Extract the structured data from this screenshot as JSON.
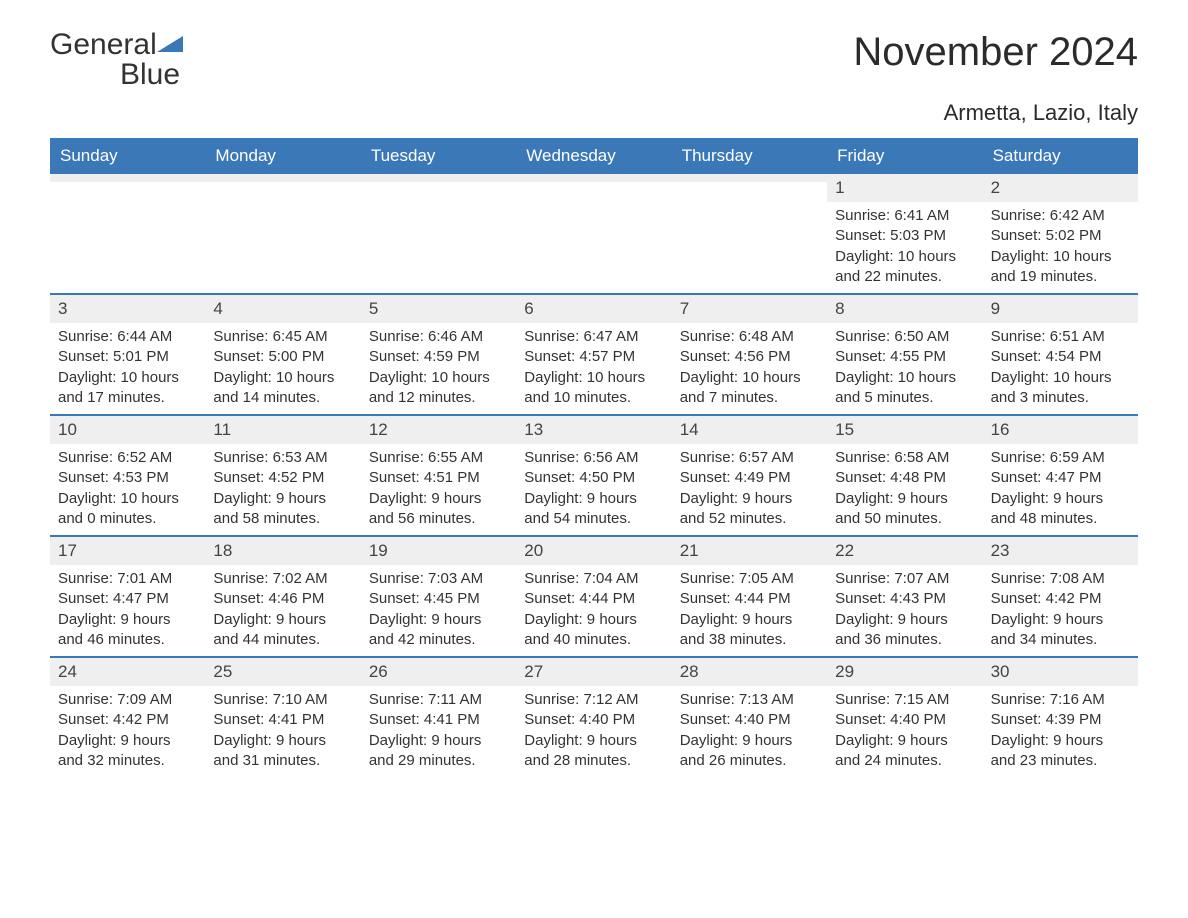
{
  "brand": {
    "name_part1": "General",
    "name_part2": "Blue"
  },
  "title": "November 2024",
  "location": "Armetta, Lazio, Italy",
  "colors": {
    "header_bg": "#3b78b8",
    "header_text": "#ffffff",
    "daynum_bg": "#efefef",
    "week_border": "#3b78b8",
    "body_text": "#333333",
    "page_bg": "#ffffff"
  },
  "day_headers": [
    "Sunday",
    "Monday",
    "Tuesday",
    "Wednesday",
    "Thursday",
    "Friday",
    "Saturday"
  ],
  "weeks": [
    [
      null,
      null,
      null,
      null,
      null,
      {
        "n": "1",
        "sunrise": "6:41 AM",
        "sunset": "5:03 PM",
        "daylight": "10 hours and 22 minutes."
      },
      {
        "n": "2",
        "sunrise": "6:42 AM",
        "sunset": "5:02 PM",
        "daylight": "10 hours and 19 minutes."
      }
    ],
    [
      {
        "n": "3",
        "sunrise": "6:44 AM",
        "sunset": "5:01 PM",
        "daylight": "10 hours and 17 minutes."
      },
      {
        "n": "4",
        "sunrise": "6:45 AM",
        "sunset": "5:00 PM",
        "daylight": "10 hours and 14 minutes."
      },
      {
        "n": "5",
        "sunrise": "6:46 AM",
        "sunset": "4:59 PM",
        "daylight": "10 hours and 12 minutes."
      },
      {
        "n": "6",
        "sunrise": "6:47 AM",
        "sunset": "4:57 PM",
        "daylight": "10 hours and 10 minutes."
      },
      {
        "n": "7",
        "sunrise": "6:48 AM",
        "sunset": "4:56 PM",
        "daylight": "10 hours and 7 minutes."
      },
      {
        "n": "8",
        "sunrise": "6:50 AM",
        "sunset": "4:55 PM",
        "daylight": "10 hours and 5 minutes."
      },
      {
        "n": "9",
        "sunrise": "6:51 AM",
        "sunset": "4:54 PM",
        "daylight": "10 hours and 3 minutes."
      }
    ],
    [
      {
        "n": "10",
        "sunrise": "6:52 AM",
        "sunset": "4:53 PM",
        "daylight": "10 hours and 0 minutes."
      },
      {
        "n": "11",
        "sunrise": "6:53 AM",
        "sunset": "4:52 PM",
        "daylight": "9 hours and 58 minutes."
      },
      {
        "n": "12",
        "sunrise": "6:55 AM",
        "sunset": "4:51 PM",
        "daylight": "9 hours and 56 minutes."
      },
      {
        "n": "13",
        "sunrise": "6:56 AM",
        "sunset": "4:50 PM",
        "daylight": "9 hours and 54 minutes."
      },
      {
        "n": "14",
        "sunrise": "6:57 AM",
        "sunset": "4:49 PM",
        "daylight": "9 hours and 52 minutes."
      },
      {
        "n": "15",
        "sunrise": "6:58 AM",
        "sunset": "4:48 PM",
        "daylight": "9 hours and 50 minutes."
      },
      {
        "n": "16",
        "sunrise": "6:59 AM",
        "sunset": "4:47 PM",
        "daylight": "9 hours and 48 minutes."
      }
    ],
    [
      {
        "n": "17",
        "sunrise": "7:01 AM",
        "sunset": "4:47 PM",
        "daylight": "9 hours and 46 minutes."
      },
      {
        "n": "18",
        "sunrise": "7:02 AM",
        "sunset": "4:46 PM",
        "daylight": "9 hours and 44 minutes."
      },
      {
        "n": "19",
        "sunrise": "7:03 AM",
        "sunset": "4:45 PM",
        "daylight": "9 hours and 42 minutes."
      },
      {
        "n": "20",
        "sunrise": "7:04 AM",
        "sunset": "4:44 PM",
        "daylight": "9 hours and 40 minutes."
      },
      {
        "n": "21",
        "sunrise": "7:05 AM",
        "sunset": "4:44 PM",
        "daylight": "9 hours and 38 minutes."
      },
      {
        "n": "22",
        "sunrise": "7:07 AM",
        "sunset": "4:43 PM",
        "daylight": "9 hours and 36 minutes."
      },
      {
        "n": "23",
        "sunrise": "7:08 AM",
        "sunset": "4:42 PM",
        "daylight": "9 hours and 34 minutes."
      }
    ],
    [
      {
        "n": "24",
        "sunrise": "7:09 AM",
        "sunset": "4:42 PM",
        "daylight": "9 hours and 32 minutes."
      },
      {
        "n": "25",
        "sunrise": "7:10 AM",
        "sunset": "4:41 PM",
        "daylight": "9 hours and 31 minutes."
      },
      {
        "n": "26",
        "sunrise": "7:11 AM",
        "sunset": "4:41 PM",
        "daylight": "9 hours and 29 minutes."
      },
      {
        "n": "27",
        "sunrise": "7:12 AM",
        "sunset": "4:40 PM",
        "daylight": "9 hours and 28 minutes."
      },
      {
        "n": "28",
        "sunrise": "7:13 AM",
        "sunset": "4:40 PM",
        "daylight": "9 hours and 26 minutes."
      },
      {
        "n": "29",
        "sunrise": "7:15 AM",
        "sunset": "4:40 PM",
        "daylight": "9 hours and 24 minutes."
      },
      {
        "n": "30",
        "sunrise": "7:16 AM",
        "sunset": "4:39 PM",
        "daylight": "9 hours and 23 minutes."
      }
    ]
  ],
  "labels": {
    "sunrise": "Sunrise:",
    "sunset": "Sunset:",
    "daylight": "Daylight:"
  }
}
